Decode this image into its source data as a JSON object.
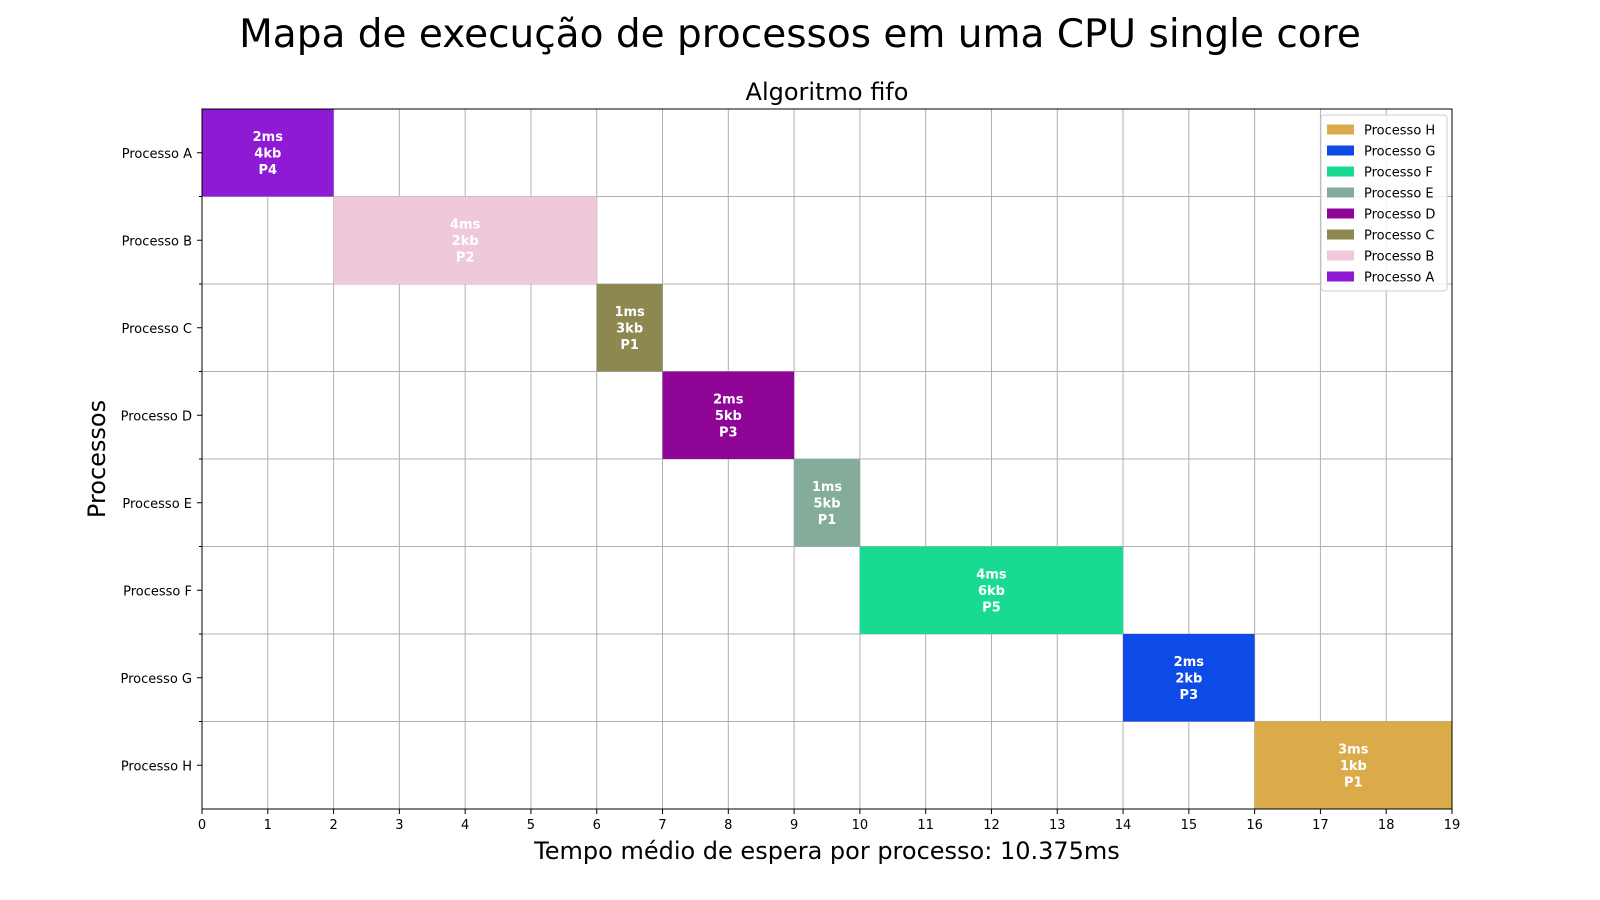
{
  "suptitle": "Mapa de execução de processos em uma CPU single core",
  "chart_data": {
    "type": "bar",
    "orientation": "horizontal-gantt",
    "title": "Algoritmo fifo",
    "xlabel": "Tempo médio de espera por processo: 10.375ms",
    "ylabel": "Processos",
    "xlim": [
      0,
      19
    ],
    "x_ticks": [
      0,
      1,
      2,
      3,
      4,
      5,
      6,
      7,
      8,
      9,
      10,
      11,
      12,
      13,
      14,
      15,
      16,
      17,
      18,
      19
    ],
    "grid": true,
    "legend_position": "top-right",
    "legend_order": [
      "Processo H",
      "Processo G",
      "Processo F",
      "Processo E",
      "Processo D",
      "Processo C",
      "Processo B",
      "Processo A"
    ],
    "categories": [
      "Processo A",
      "Processo B",
      "Processo C",
      "Processo D",
      "Processo E",
      "Processo F",
      "Processo G",
      "Processo H"
    ],
    "series": [
      {
        "name": "Processo A",
        "start": 0,
        "duration": 2,
        "color": "#8e1ad6",
        "label": [
          "2ms",
          "4kb",
          "P4"
        ]
      },
      {
        "name": "Processo B",
        "start": 2,
        "duration": 4,
        "color": "#efc8dc",
        "label": [
          "4ms",
          "2kb",
          "P2"
        ]
      },
      {
        "name": "Processo C",
        "start": 6,
        "duration": 1,
        "color": "#8c8850",
        "label": [
          "1ms",
          "3kb",
          "P1"
        ]
      },
      {
        "name": "Processo D",
        "start": 7,
        "duration": 2,
        "color": "#8f0696",
        "label": [
          "2ms",
          "5kb",
          "P3"
        ]
      },
      {
        "name": "Processo E",
        "start": 9,
        "duration": 1,
        "color": "#85ab9a",
        "label": [
          "1ms",
          "5kb",
          "P1"
        ]
      },
      {
        "name": "Processo F",
        "start": 10,
        "duration": 4,
        "color": "#18da91",
        "label": [
          "4ms",
          "6kb",
          "P5"
        ]
      },
      {
        "name": "Processo G",
        "start": 14,
        "duration": 2,
        "color": "#0d4ae6",
        "label": [
          "2ms",
          "2kb",
          "P3"
        ]
      },
      {
        "name": "Processo H",
        "start": 16,
        "duration": 3,
        "color": "#dbab49",
        "label": [
          "3ms",
          "1kb",
          "P1"
        ]
      }
    ]
  }
}
